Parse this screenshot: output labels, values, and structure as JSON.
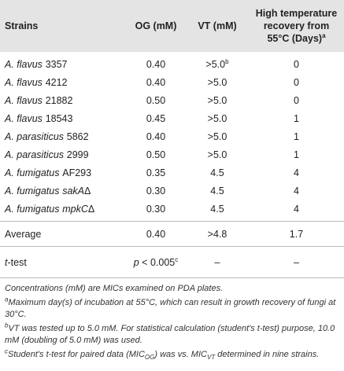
{
  "table": {
    "header": [
      "Strains",
      "OG (mM)",
      "VT (mM)",
      [
        {
          "text": "High temperature recovery from 55°C (Days)"
        },
        {
          "sup": "a"
        }
      ]
    ],
    "groups": [
      [
        [
          [
            {
              "species": "A. flavus"
            },
            {
              "text": "3357"
            }
          ],
          "0.40",
          [
            {
              "text": ">5.0"
            },
            {
              "sup": "b"
            }
          ],
          "0"
        ],
        [
          [
            {
              "species": "A. flavus"
            },
            {
              "text": "4212"
            }
          ],
          "0.40",
          ">5.0",
          "0"
        ],
        [
          [
            {
              "species": "A. flavus"
            },
            {
              "text": "21882"
            }
          ],
          "0.50",
          ">5.0",
          "0"
        ],
        [
          [
            {
              "species": "A. flavus"
            },
            {
              "text": "18543"
            }
          ],
          "0.45",
          ">5.0",
          "1"
        ],
        [
          [
            {
              "species": "A. parasiticus"
            },
            {
              "text": "5862"
            }
          ],
          "0.40",
          ">5.0",
          "1"
        ],
        [
          [
            {
              "species": "A. parasiticus"
            },
            {
              "text": "2999"
            }
          ],
          "0.50",
          ">5.0",
          "1"
        ],
        [
          [
            {
              "species": "A. fumigatus"
            },
            {
              "text": "AF293"
            }
          ],
          "0.35",
          "4.5",
          "4"
        ],
        [
          [
            {
              "species": "A. fumigatus"
            },
            {
              "italic": "sakA"
            },
            {
              "text": "Δ"
            }
          ],
          "0.30",
          "4.5",
          "4"
        ],
        [
          [
            {
              "species": "A. fumigatus"
            },
            {
              "italic": "mpkC"
            },
            {
              "text": "Δ"
            }
          ],
          "0.30",
          "4.5",
          "4"
        ]
      ],
      [
        [
          "Average",
          "0.40",
          ">4.8",
          "1.7"
        ]
      ],
      [
        [
          [
            {
              "italic": "t"
            },
            {
              "text": "-test"
            }
          ],
          [
            {
              "italic": "p"
            },
            {
              "text": " < 0.005"
            },
            {
              "sup": "c"
            }
          ],
          "–",
          "–"
        ]
      ]
    ]
  },
  "footnotes": [
    [
      {
        "text": "Concentrations (mM) are MICs examined on PDA plates."
      }
    ],
    [
      {
        "sup": "a"
      },
      {
        "text": "Maximum day(s) of incubation at 55°C, which can result in growth recovery of fungi at 30°C."
      }
    ],
    [
      {
        "sup": "b"
      },
      {
        "text": "VT was tested up to 5.0 mM. For statistical calculation (student's t-test) purpose, 10.0 mM (doubling of 5.0 mM) was used."
      }
    ],
    [
      {
        "sup": "c"
      },
      {
        "text": "Student's t-test for paired data (MIC"
      },
      {
        "sub": "OG"
      },
      {
        "text": ") was vs. MIC"
      },
      {
        "sub": "VT"
      },
      {
        "text": " determined in nine strains."
      }
    ]
  ]
}
